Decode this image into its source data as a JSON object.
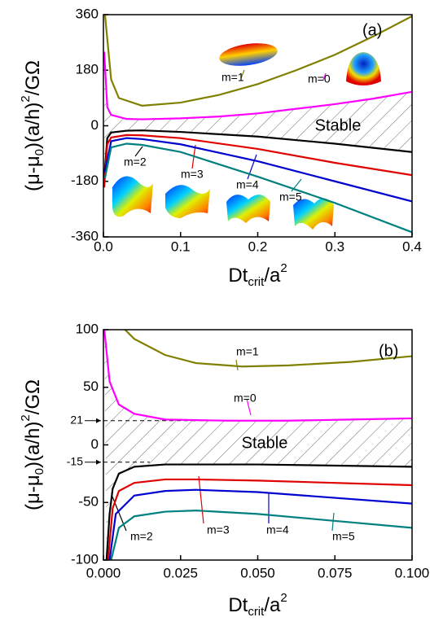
{
  "chart_data": [
    {
      "type": "line",
      "panel": "(a)",
      "annotation": "Stable",
      "xlabel": [
        "Dt",
        "crit",
        "/a",
        "2"
      ],
      "ylabel": [
        "(μ-μ",
        "0",
        ")(a/h)",
        "2",
        "/GΩ"
      ],
      "xlim": [
        0,
        0.4
      ],
      "ylim": [
        -360,
        360
      ],
      "xticks": [
        {
          "value": 0,
          "label": "0.0"
        },
        0.1,
        0.2,
        0.3,
        0.4
      ],
      "yticks": [
        -360,
        -180,
        0,
        180,
        360
      ],
      "series": [
        {
          "name": "m=1",
          "color": "#808000",
          "x": [
            0.002,
            0.01,
            0.02,
            0.05,
            0.1,
            0.15,
            0.2,
            0.25,
            0.3,
            0.35,
            0.4
          ],
          "values": [
            360,
            150,
            90,
            65,
            75,
            100,
            135,
            180,
            230,
            290,
            355
          ]
        },
        {
          "name": "m=0",
          "color": "#ff00ff",
          "x": [
            0.001,
            0.005,
            0.01,
            0.03,
            0.05,
            0.1,
            0.15,
            0.2,
            0.25,
            0.3,
            0.35,
            0.4
          ],
          "values": [
            240,
            60,
            35,
            22,
            21,
            24,
            30,
            40,
            55,
            70,
            88,
            110
          ]
        },
        {
          "name": "m=2",
          "color": "#000000",
          "x": [
            0.001,
            0.005,
            0.01,
            0.03,
            0.05,
            0.1,
            0.2,
            0.3,
            0.4
          ],
          "values": [
            -170,
            -40,
            -22,
            -16,
            -15,
            -20,
            -35,
            -58,
            -85
          ]
        },
        {
          "name": "m=3",
          "color": "#e00000",
          "x": [
            0.001,
            0.005,
            0.01,
            0.03,
            0.05,
            0.1,
            0.2,
            0.3,
            0.4
          ],
          "values": [
            -200,
            -60,
            -38,
            -30,
            -31,
            -40,
            -75,
            -120,
            -160
          ]
        },
        {
          "name": "m=4",
          "color": "#0000d0",
          "x": [
            0.002,
            0.01,
            0.03,
            0.05,
            0.1,
            0.2,
            0.3,
            0.4
          ],
          "values": [
            -150,
            -50,
            -40,
            -43,
            -60,
            -115,
            -180,
            -245
          ]
        },
        {
          "name": "m=5",
          "color": "#008080",
          "x": [
            0.002,
            0.01,
            0.03,
            0.05,
            0.1,
            0.2,
            0.3,
            0.4
          ],
          "values": [
            -170,
            -70,
            -58,
            -62,
            -85,
            -165,
            -250,
            -345
          ]
        }
      ]
    },
    {
      "type": "line",
      "panel": "(b)",
      "annotation": "Stable",
      "xlabel": [
        "Dt",
        "crit",
        "/a",
        "2"
      ],
      "ylabel": [
        "(μ-μ",
        "0",
        ")(a/h)",
        "2",
        "/GΩ"
      ],
      "xlim": [
        0,
        0.1
      ],
      "ylim": [
        -100,
        100
      ],
      "xticks": [
        {
          "value": 0,
          "label": "0.000"
        },
        0.025,
        {
          "value": 0.05,
          "label": "0.050"
        },
        0.075,
        {
          "value": 0.1,
          "label": "0.100"
        }
      ],
      "yticks": [
        -100,
        -50,
        0,
        50,
        100
      ],
      "hlines": [
        21,
        -15
      ],
      "series": [
        {
          "name": "m=1",
          "color": "#808000",
          "x": [
            0.007,
            0.01,
            0.02,
            0.03,
            0.045,
            0.06,
            0.08,
            0.1
          ],
          "values": [
            100,
            92,
            78,
            71,
            68,
            69,
            72,
            77
          ]
        },
        {
          "name": "m=0",
          "color": "#ff00ff",
          "x": [
            0.0003,
            0.002,
            0.005,
            0.01,
            0.02,
            0.04,
            0.06,
            0.08,
            0.1
          ],
          "values": [
            100,
            55,
            35,
            27,
            22,
            21,
            21,
            22,
            23
          ]
        },
        {
          "name": "m=2",
          "color": "#000000",
          "x": [
            0.001,
            0.002,
            0.003,
            0.005,
            0.01,
            0.02,
            0.05,
            0.1
          ],
          "values": [
            -100,
            -60,
            -38,
            -25,
            -19,
            -17,
            -17,
            -19
          ]
        },
        {
          "name": "m=3",
          "color": "#e00000",
          "x": [
            0.0015,
            0.003,
            0.005,
            0.01,
            0.02,
            0.03,
            0.05,
            0.1
          ],
          "values": [
            -100,
            -55,
            -40,
            -33,
            -30,
            -30,
            -31,
            -35
          ]
        },
        {
          "name": "m=4",
          "color": "#0000d0",
          "x": [
            0.002,
            0.004,
            0.01,
            0.02,
            0.03,
            0.05,
            0.1
          ],
          "values": [
            -100,
            -60,
            -44,
            -40,
            -39,
            -41,
            -51
          ]
        },
        {
          "name": "m=5",
          "color": "#008080",
          "x": [
            0.0025,
            0.005,
            0.01,
            0.02,
            0.03,
            0.05,
            0.1
          ],
          "values": [
            -100,
            -72,
            -62,
            -58,
            -57,
            -60,
            -72
          ]
        }
      ]
    }
  ]
}
